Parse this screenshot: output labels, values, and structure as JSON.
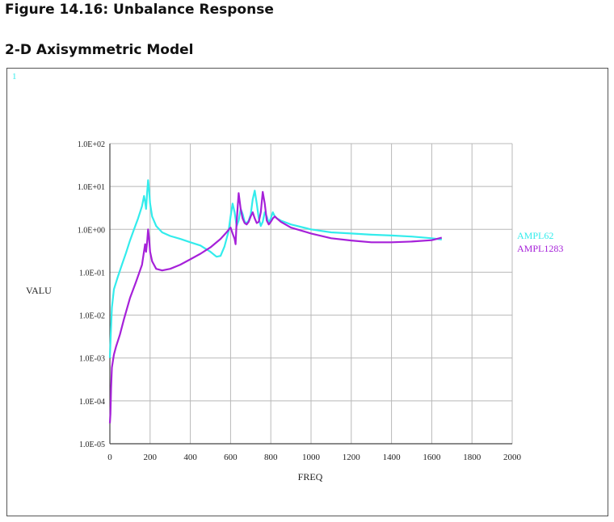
{
  "figure_title": "Figure 14.16: Unbalance Response",
  "figure_subtitle": "2-D Axisymmetric Model",
  "window_number": "1",
  "chart_data": {
    "type": "line",
    "title": "",
    "xlabel": "FREQ",
    "ylabel": "VALU",
    "xlim": [
      0,
      2000
    ],
    "ylim": [
      1e-05,
      100
    ],
    "yscale": "log",
    "grid": true,
    "legend_position": "right",
    "x_ticks": [
      "0",
      "200",
      "400",
      "600",
      "800",
      "1000",
      "1200",
      "1400",
      "1600",
      "1800",
      "2000"
    ],
    "y_ticks": [
      "1.0E-05",
      "1.0E-04",
      "1.0E-03",
      "1.0E-02",
      "1.0E-01",
      "1.0E+00",
      "1.0E+01",
      "1.0E+02"
    ],
    "series": [
      {
        "name": "AMPL62",
        "color": "#33ecec",
        "x": [
          0,
          5,
          10,
          20,
          40,
          60,
          80,
          100,
          120,
          140,
          160,
          170,
          175,
          180,
          185,
          190,
          195,
          200,
          210,
          230,
          260,
          300,
          350,
          400,
          450,
          500,
          530,
          550,
          570,
          590,
          600,
          610,
          620,
          630,
          640,
          650,
          660,
          670,
          680,
          690,
          700,
          710,
          720,
          730,
          740,
          750,
          760,
          770,
          780,
          790,
          800,
          810,
          820,
          830,
          850,
          900,
          1000,
          1100,
          1200,
          1300,
          1400,
          1500,
          1600,
          1650
        ],
        "y": [
          0.001,
          0.004,
          0.015,
          0.04,
          0.08,
          0.15,
          0.28,
          0.55,
          1.0,
          1.8,
          3.5,
          6.0,
          4.5,
          3.0,
          7.0,
          14.0,
          8.0,
          4.0,
          2.0,
          1.2,
          0.85,
          0.7,
          0.6,
          0.5,
          0.42,
          0.3,
          0.23,
          0.24,
          0.4,
          0.9,
          2.0,
          4.0,
          2.5,
          1.2,
          1.6,
          3.0,
          2.3,
          1.5,
          1.4,
          1.6,
          2.2,
          5.0,
          8.0,
          4.0,
          1.8,
          1.2,
          1.5,
          2.5,
          2.0,
          1.4,
          1.8,
          2.5,
          2.0,
          1.8,
          1.6,
          1.3,
          1.0,
          0.85,
          0.8,
          0.75,
          0.72,
          0.68,
          0.62,
          0.58
        ]
      },
      {
        "name": "AMPL1283",
        "color": "#a621d9",
        "x": [
          0,
          3,
          6,
          10,
          20,
          30,
          50,
          70,
          100,
          130,
          160,
          175,
          180,
          185,
          190,
          195,
          200,
          210,
          230,
          260,
          300,
          350,
          400,
          450,
          500,
          550,
          580,
          600,
          610,
          620,
          625,
          630,
          640,
          650,
          660,
          670,
          680,
          690,
          700,
          710,
          720,
          730,
          740,
          750,
          760,
          770,
          780,
          790,
          800,
          810,
          820,
          830,
          850,
          900,
          1000,
          1100,
          1200,
          1300,
          1400,
          1500,
          1600,
          1650
        ],
        "y": [
          3e-05,
          5e-05,
          0.0002,
          0.0006,
          0.0012,
          0.0018,
          0.0035,
          0.008,
          0.025,
          0.06,
          0.15,
          0.45,
          0.3,
          0.5,
          1.0,
          0.6,
          0.3,
          0.18,
          0.12,
          0.11,
          0.12,
          0.15,
          0.2,
          0.27,
          0.38,
          0.6,
          0.85,
          1.1,
          0.8,
          0.6,
          0.45,
          1.5,
          7.0,
          3.0,
          1.8,
          1.4,
          1.3,
          1.5,
          2.0,
          2.5,
          1.8,
          1.4,
          1.5,
          2.5,
          7.5,
          4.0,
          1.6,
          1.3,
          1.5,
          1.8,
          2.0,
          1.8,
          1.5,
          1.1,
          0.8,
          0.62,
          0.55,
          0.5,
          0.5,
          0.52,
          0.56,
          0.64
        ]
      }
    ]
  }
}
